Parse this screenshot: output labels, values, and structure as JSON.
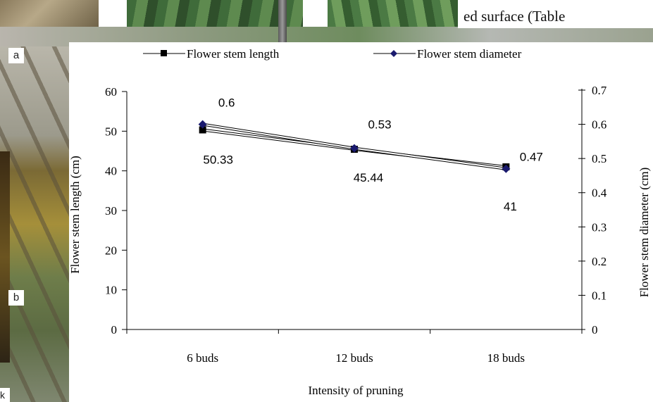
{
  "background": {
    "caption_snippet": "ed surface (Table",
    "photo_labels": [
      "a",
      "b"
    ],
    "corner_letter": "k"
  },
  "colors": {
    "length_series": "#000000",
    "diameter_series": "#1a1a6e",
    "line_fill": "#ffffff"
  },
  "chart_data": {
    "type": "line",
    "title": "",
    "xlabel": "Intensity of pruning",
    "ylabel": "Flower stem length (cm)",
    "ylabel_right": "Flower stem  diameter (cm)",
    "categories": [
      "6 buds",
      "12 buds",
      "18 buds"
    ],
    "ylim": [
      0,
      60
    ],
    "yticks": [
      "0",
      "10",
      "20",
      "30",
      "40",
      "50",
      "60"
    ],
    "ylim_right": [
      0,
      0.7
    ],
    "yticks_right": [
      "0",
      "0.1",
      "0.2",
      "0.3",
      "0.4",
      "0.5",
      "0.6",
      "0.7"
    ],
    "legend_position": "top",
    "series": [
      {
        "name": "Flower stem length",
        "axis": "left",
        "marker": "square",
        "values": [
          50.33,
          45.44,
          41
        ],
        "labels": [
          "50.33",
          "45.44",
          "41"
        ]
      },
      {
        "name": "Flower stem diameter",
        "axis": "right",
        "marker": "diamond",
        "values": [
          0.6,
          0.53,
          0.47
        ],
        "labels": [
          "0.6",
          "0.53",
          "0.47"
        ]
      }
    ]
  }
}
